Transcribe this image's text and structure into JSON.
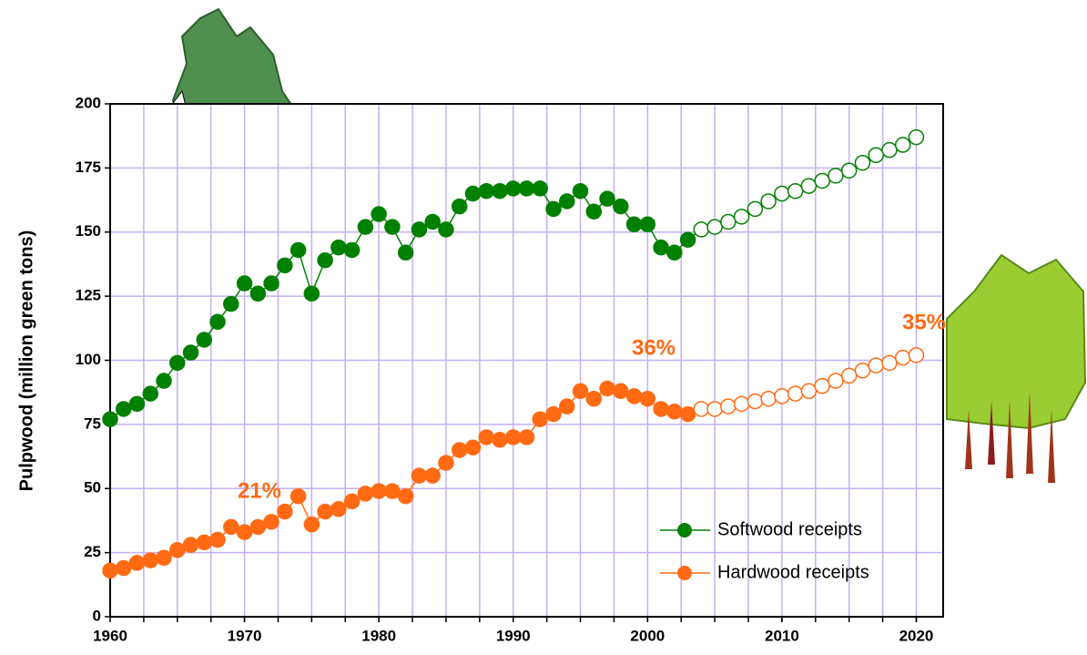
{
  "chart_data": {
    "type": "line",
    "y_label": "Pulpwood (million green tons)",
    "x": [
      1960,
      1961,
      1962,
      1963,
      1964,
      1965,
      1966,
      1967,
      1968,
      1969,
      1970,
      1971,
      1972,
      1973,
      1974,
      1975,
      1976,
      1977,
      1978,
      1979,
      1980,
      1981,
      1982,
      1983,
      1984,
      1985,
      1986,
      1987,
      1988,
      1989,
      1990,
      1991,
      1992,
      1993,
      1994,
      1995,
      1996,
      1997,
      1998,
      1999,
      2000,
      2001,
      2002,
      2003,
      2004,
      2005,
      2006,
      2007,
      2008,
      2009,
      2010,
      2011,
      2012,
      2013,
      2014,
      2015,
      2016,
      2017,
      2018,
      2019,
      2020
    ],
    "projection_start": 2004,
    "series": [
      {
        "name": "Softwood receipts",
        "color": "#008000",
        "values": [
          77,
          81,
          83,
          87,
          92,
          99,
          103,
          108,
          115,
          122,
          130,
          126,
          130,
          137,
          143,
          126,
          139,
          144,
          143,
          152,
          157,
          152,
          142,
          151,
          154,
          151,
          160,
          165,
          166,
          166,
          167,
          167,
          167,
          159,
          162,
          166,
          158,
          163,
          160,
          153,
          153,
          144,
          142,
          147,
          151,
          152,
          154,
          156,
          159,
          162,
          165,
          166,
          168,
          170,
          172,
          174,
          177,
          180,
          182,
          184,
          187
        ]
      },
      {
        "name": "Hardwood receipts",
        "color": "#ff6a13",
        "values": [
          18,
          19,
          21,
          22,
          23,
          26,
          28,
          29,
          30,
          35,
          33,
          35,
          37,
          41,
          47,
          36,
          41,
          42,
          45,
          48,
          49,
          49,
          47,
          55,
          55,
          60,
          65,
          66,
          70,
          69,
          70,
          70,
          77,
          79,
          82,
          88,
          85,
          89,
          88,
          86,
          85,
          81,
          80,
          79,
          81,
          81,
          82,
          83,
          84,
          85,
          86,
          87,
          88,
          90,
          92,
          94,
          96,
          98,
          99,
          101,
          102
        ]
      }
    ],
    "annotations": [
      "21%",
      "36%",
      "35%"
    ],
    "xlim": [
      1960,
      2022
    ],
    "xticks": [
      1960,
      1970,
      1980,
      1990,
      2000,
      2010,
      2020
    ],
    "xgrid": [
      1962.5,
      1965,
      1967.5,
      1970,
      1972.5,
      1975,
      1977.5,
      1980,
      1982.5,
      1985,
      1987.5,
      1990,
      1992.5,
      1995,
      1997.5,
      2000,
      2002.5,
      2005,
      2007.5,
      2010,
      2012.5,
      2015,
      2017.5,
      2020
    ],
    "ylim": [
      0,
      200
    ],
    "yticks": [
      0,
      25,
      50,
      75,
      100,
      125,
      150,
      175,
      200
    ],
    "grid": true,
    "grid_color": "#c4b0f0",
    "legend_position": "lower right"
  }
}
